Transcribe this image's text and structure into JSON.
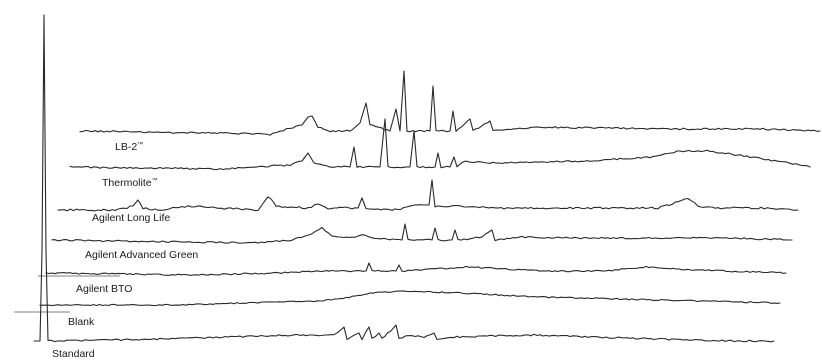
{
  "chart_data": {
    "type": "line",
    "title": "",
    "xlabel": "",
    "ylabel": "",
    "grid": false,
    "legend": "none",
    "series": [
      {
        "name": "LB-2™",
        "label_text": "LB-2",
        "label_mark": "™",
        "noise": 1.0,
        "points": [
          [
            0,
            0
          ],
          [
            185,
            3
          ],
          [
            190,
            4
          ],
          [
            200,
            0
          ],
          [
            210,
            -3
          ],
          [
            222,
            -6
          ],
          [
            228,
            -14
          ],
          [
            232,
            -15
          ],
          [
            238,
            -4
          ],
          [
            250,
            0
          ],
          [
            270,
            0
          ],
          [
            280,
            -8
          ],
          [
            286,
            -28
          ],
          [
            290,
            -6
          ],
          [
            310,
            0
          ],
          [
            316,
            -22
          ],
          [
            320,
            0
          ],
          [
            324,
            -60
          ],
          [
            327,
            0
          ],
          [
            350,
            0
          ],
          [
            353,
            -45
          ],
          [
            356,
            0
          ],
          [
            370,
            0
          ],
          [
            373,
            -20
          ],
          [
            376,
            0
          ],
          [
            390,
            -12
          ],
          [
            393,
            0
          ],
          [
            410,
            -10
          ],
          [
            413,
            0
          ],
          [
            460,
            -4
          ],
          [
            520,
            -3
          ],
          [
            600,
            -2
          ],
          [
            680,
            -2
          ],
          [
            740,
            0
          ]
        ]
      },
      {
        "name": "Thermolite™",
        "label_text": "Thermolite",
        "label_mark": "™",
        "noise": 1.0,
        "points": [
          [
            0,
            0
          ],
          [
            150,
            2
          ],
          [
            220,
            -2
          ],
          [
            232,
            -6
          ],
          [
            238,
            -14
          ],
          [
            244,
            -4
          ],
          [
            262,
            0
          ],
          [
            280,
            0
          ],
          [
            284,
            -20
          ],
          [
            287,
            0
          ],
          [
            310,
            0
          ],
          [
            315,
            -48
          ],
          [
            318,
            0
          ],
          [
            340,
            0
          ],
          [
            344,
            -36
          ],
          [
            347,
            0
          ],
          [
            365,
            0
          ],
          [
            368,
            -14
          ],
          [
            371,
            0
          ],
          [
            380,
            0
          ],
          [
            384,
            -10
          ],
          [
            387,
            0
          ],
          [
            395,
            -6
          ],
          [
            420,
            -4
          ],
          [
            520,
            -6
          ],
          [
            580,
            -10
          ],
          [
            610,
            -16
          ],
          [
            640,
            -16
          ],
          [
            680,
            -10
          ],
          [
            720,
            -4
          ],
          [
            740,
            0
          ]
        ]
      },
      {
        "name": "Agilent Long Life",
        "label_text": "Agilent Long Life",
        "label_mark": "",
        "noise": 1.2,
        "points": [
          [
            0,
            0
          ],
          [
            40,
            0
          ],
          [
            60,
            0
          ],
          [
            75,
            -4
          ],
          [
            80,
            -10
          ],
          [
            85,
            -2
          ],
          [
            100,
            0
          ],
          [
            130,
            -4
          ],
          [
            160,
            -2
          ],
          [
            200,
            0
          ],
          [
            210,
            -14
          ],
          [
            218,
            -4
          ],
          [
            250,
            -2
          ],
          [
            260,
            -6
          ],
          [
            270,
            -2
          ],
          [
            300,
            -2
          ],
          [
            304,
            -12
          ],
          [
            308,
            -2
          ],
          [
            340,
            0
          ],
          [
            360,
            -6
          ],
          [
            371,
            -5
          ],
          [
            374,
            -30
          ],
          [
            377,
            -3
          ],
          [
            400,
            -4
          ],
          [
            440,
            -2
          ],
          [
            500,
            -2
          ],
          [
            560,
            -2
          ],
          [
            600,
            -2
          ],
          [
            620,
            -8
          ],
          [
            630,
            -12
          ],
          [
            640,
            -4
          ],
          [
            660,
            -2
          ],
          [
            700,
            -2
          ],
          [
            740,
            0
          ]
        ]
      },
      {
        "name": "Agilent Advanced Green",
        "label_text": "Agilent Advanced Green",
        "label_mark": "",
        "noise": 1.0,
        "points": [
          [
            0,
            0
          ],
          [
            200,
            3
          ],
          [
            240,
            0
          ],
          [
            260,
            -6
          ],
          [
            270,
            -12
          ],
          [
            280,
            -4
          ],
          [
            300,
            -2
          ],
          [
            310,
            -6
          ],
          [
            320,
            -2
          ],
          [
            350,
            0
          ],
          [
            353,
            -16
          ],
          [
            356,
            0
          ],
          [
            380,
            0
          ],
          [
            383,
            -12
          ],
          [
            386,
            0
          ],
          [
            400,
            0
          ],
          [
            403,
            -10
          ],
          [
            406,
            0
          ],
          [
            430,
            -3
          ],
          [
            440,
            -10
          ],
          [
            443,
            0
          ],
          [
            470,
            -3
          ],
          [
            520,
            -2
          ],
          [
            600,
            -2
          ],
          [
            680,
            -2
          ],
          [
            740,
            0
          ]
        ]
      },
      {
        "name": "Agilent BTO",
        "label_text": "Agilent BTO",
        "label_mark": "",
        "noise": 0.9,
        "points": [
          [
            0,
            0
          ],
          [
            150,
            2
          ],
          [
            230,
            0
          ],
          [
            280,
            -2
          ],
          [
            320,
            -2
          ],
          [
            323,
            -10
          ],
          [
            326,
            -2
          ],
          [
            350,
            -2
          ],
          [
            353,
            -8
          ],
          [
            356,
            -2
          ],
          [
            390,
            -4
          ],
          [
            420,
            -6
          ],
          [
            460,
            -4
          ],
          [
            500,
            -2
          ],
          [
            560,
            -2
          ],
          [
            600,
            -6
          ],
          [
            630,
            -4
          ],
          [
            680,
            -2
          ],
          [
            740,
            0
          ]
        ]
      },
      {
        "name": "Blank",
        "label_text": "Blank",
        "label_mark": "",
        "noise": 0.8,
        "points": [
          [
            0,
            0
          ],
          [
            140,
            0
          ],
          [
            200,
            -2
          ],
          [
            280,
            -4
          ],
          [
            300,
            -6
          ],
          [
            330,
            -12
          ],
          [
            360,
            -14
          ],
          [
            420,
            -12
          ],
          [
            500,
            -8
          ],
          [
            580,
            -6
          ],
          [
            660,
            -4
          ],
          [
            740,
            -2
          ]
        ]
      },
      {
        "name": "Standard",
        "label_text": "Standard",
        "label_mark": "",
        "noise": 1.0,
        "points": [
          [
            0,
            0
          ],
          [
            6,
            0
          ],
          [
            8,
            -90
          ],
          [
            10,
            -326
          ],
          [
            12,
            -90
          ],
          [
            14,
            0
          ],
          [
            30,
            0
          ],
          [
            120,
            -2
          ],
          [
            200,
            -4
          ],
          [
            260,
            -6
          ],
          [
            300,
            -6
          ],
          [
            310,
            -14
          ],
          [
            313,
            -2
          ],
          [
            325,
            -8
          ],
          [
            328,
            -2
          ],
          [
            335,
            -14
          ],
          [
            338,
            -2
          ],
          [
            345,
            -8
          ],
          [
            348,
            -2
          ],
          [
            362,
            -16
          ],
          [
            365,
            -2
          ],
          [
            375,
            -6
          ],
          [
            390,
            -4
          ],
          [
            400,
            -8
          ],
          [
            403,
            -2
          ],
          [
            420,
            -4
          ],
          [
            500,
            -6
          ],
          [
            560,
            -4
          ],
          [
            620,
            -2
          ],
          [
            700,
            0
          ],
          [
            740,
            0
          ]
        ]
      }
    ]
  }
}
